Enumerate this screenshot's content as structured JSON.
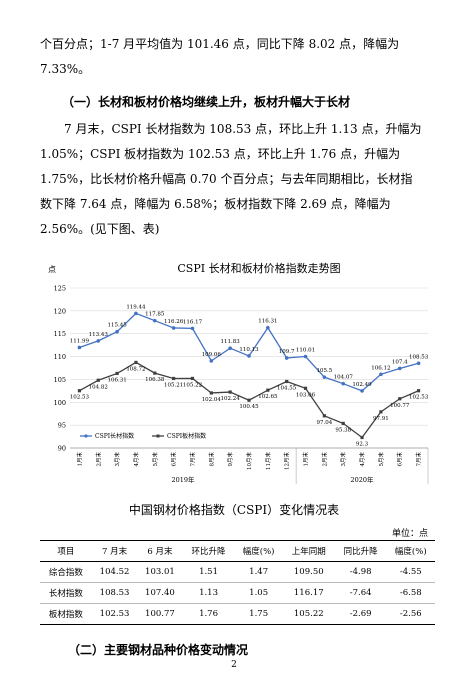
{
  "body_text": {
    "para1_line1": "个百分点；1-7 月平均值为 101.46 点，同比下降 8.02 点，降幅为",
    "para1_line2": "7.33%。",
    "heading1": "（一）长材和板材价格均继续上升，板材升幅大于长材",
    "para2_line1": "7 月末，CSPI 长材指数为 108.53 点，环比上升 1.13 点，升幅为",
    "para2_line2": "1.05%；CSPI 板材指数为 102.53 点，环比上升 1.76 点，升幅为",
    "para2_line3": "1.75%，比长材价格升幅高 0.70 个百分点；与去年同期相比，长材指",
    "para2_line4": "数下降 7.64 点，降幅为 6.58%；板材指数下降 2.69 点，降幅为",
    "para2_line5": "2.56%。(见下图、表)",
    "heading2": "（二）主要钢材品种价格变动情况"
  },
  "chart_data": {
    "type": "line",
    "title": "CSPI 长材和板材价格指数走势图",
    "ylabel": "点",
    "ylim": [
      90,
      125
    ],
    "yticks": [
      90,
      95,
      100,
      105,
      110,
      115,
      120,
      125
    ],
    "grid": true,
    "categories": [
      "1月末",
      "2月末",
      "3月末",
      "4月末",
      "5月末",
      "6月末",
      "7月末",
      "8月末",
      "9月末",
      "10月末",
      "11月末",
      "12月末",
      "1月末",
      "2月末",
      "3月末",
      "4月末",
      "5月末",
      "6月末",
      "7月末"
    ],
    "year_groups": [
      {
        "label": "2019年",
        "from": 0,
        "to": 11
      },
      {
        "label": "2020年",
        "from": 12,
        "to": 18
      }
    ],
    "series": [
      {
        "name": "CSPI长材指数",
        "color": "#4472C4",
        "values": [
          111.99,
          113.43,
          115.45,
          119.44,
          117.85,
          116.26,
          116.17,
          109.06,
          111.83,
          110.13,
          116.31,
          109.7,
          110.01,
          105.5,
          104.07,
          102.49,
          106.12,
          107.4,
          108.53
        ],
        "labels": [
          "111.99",
          "113.43",
          "115.45",
          "119.44",
          "117.85",
          "116.26",
          "116.17",
          "109.06",
          "111.83",
          "110.13",
          "116.31",
          "109.7",
          "110.01",
          "105.5",
          "104.07",
          "102.49",
          "106.12",
          "107.4",
          "108.53"
        ]
      },
      {
        "name": "CSPI板材指数",
        "color": "#404040",
        "values": [
          102.53,
          104.82,
          106.31,
          108.72,
          106.38,
          105.21,
          105.22,
          102.04,
          102.24,
          100.45,
          102.65,
          104.55,
          103.06,
          97.04,
          95.38,
          92.3,
          97.91,
          100.77,
          102.53
        ],
        "labels": [
          "102.53",
          "104.82",
          "106.31",
          "108.72",
          "106.38",
          "105.21",
          "105.22",
          "102.04",
          "102.24",
          "100.45",
          "102.65",
          "104.55",
          "103.06",
          "97.04",
          "95.38",
          "92.3",
          "97.91",
          "100.77",
          "102.53"
        ]
      }
    ]
  },
  "table": {
    "title": "中国钢材价格指数（CSPI）变化情况表",
    "unit": "单位：点",
    "headers": [
      "项目",
      "7 月末",
      "6 月末",
      "环比升降",
      "幅度(%)",
      "上年同期",
      "同比升降",
      "幅度(%)"
    ],
    "rows": [
      [
        "综合指数",
        "104.52",
        "103.01",
        "1.51",
        "1.47",
        "109.50",
        "-4.98",
        "-4.55"
      ],
      [
        "长材指数",
        "108.53",
        "107.40",
        "1.13",
        "1.05",
        "116.17",
        "-7.64",
        "-6.58"
      ],
      [
        "板材指数",
        "102.53",
        "100.77",
        "1.76",
        "1.75",
        "105.22",
        "-2.69",
        "-2.56"
      ]
    ]
  },
  "page_number": "2"
}
